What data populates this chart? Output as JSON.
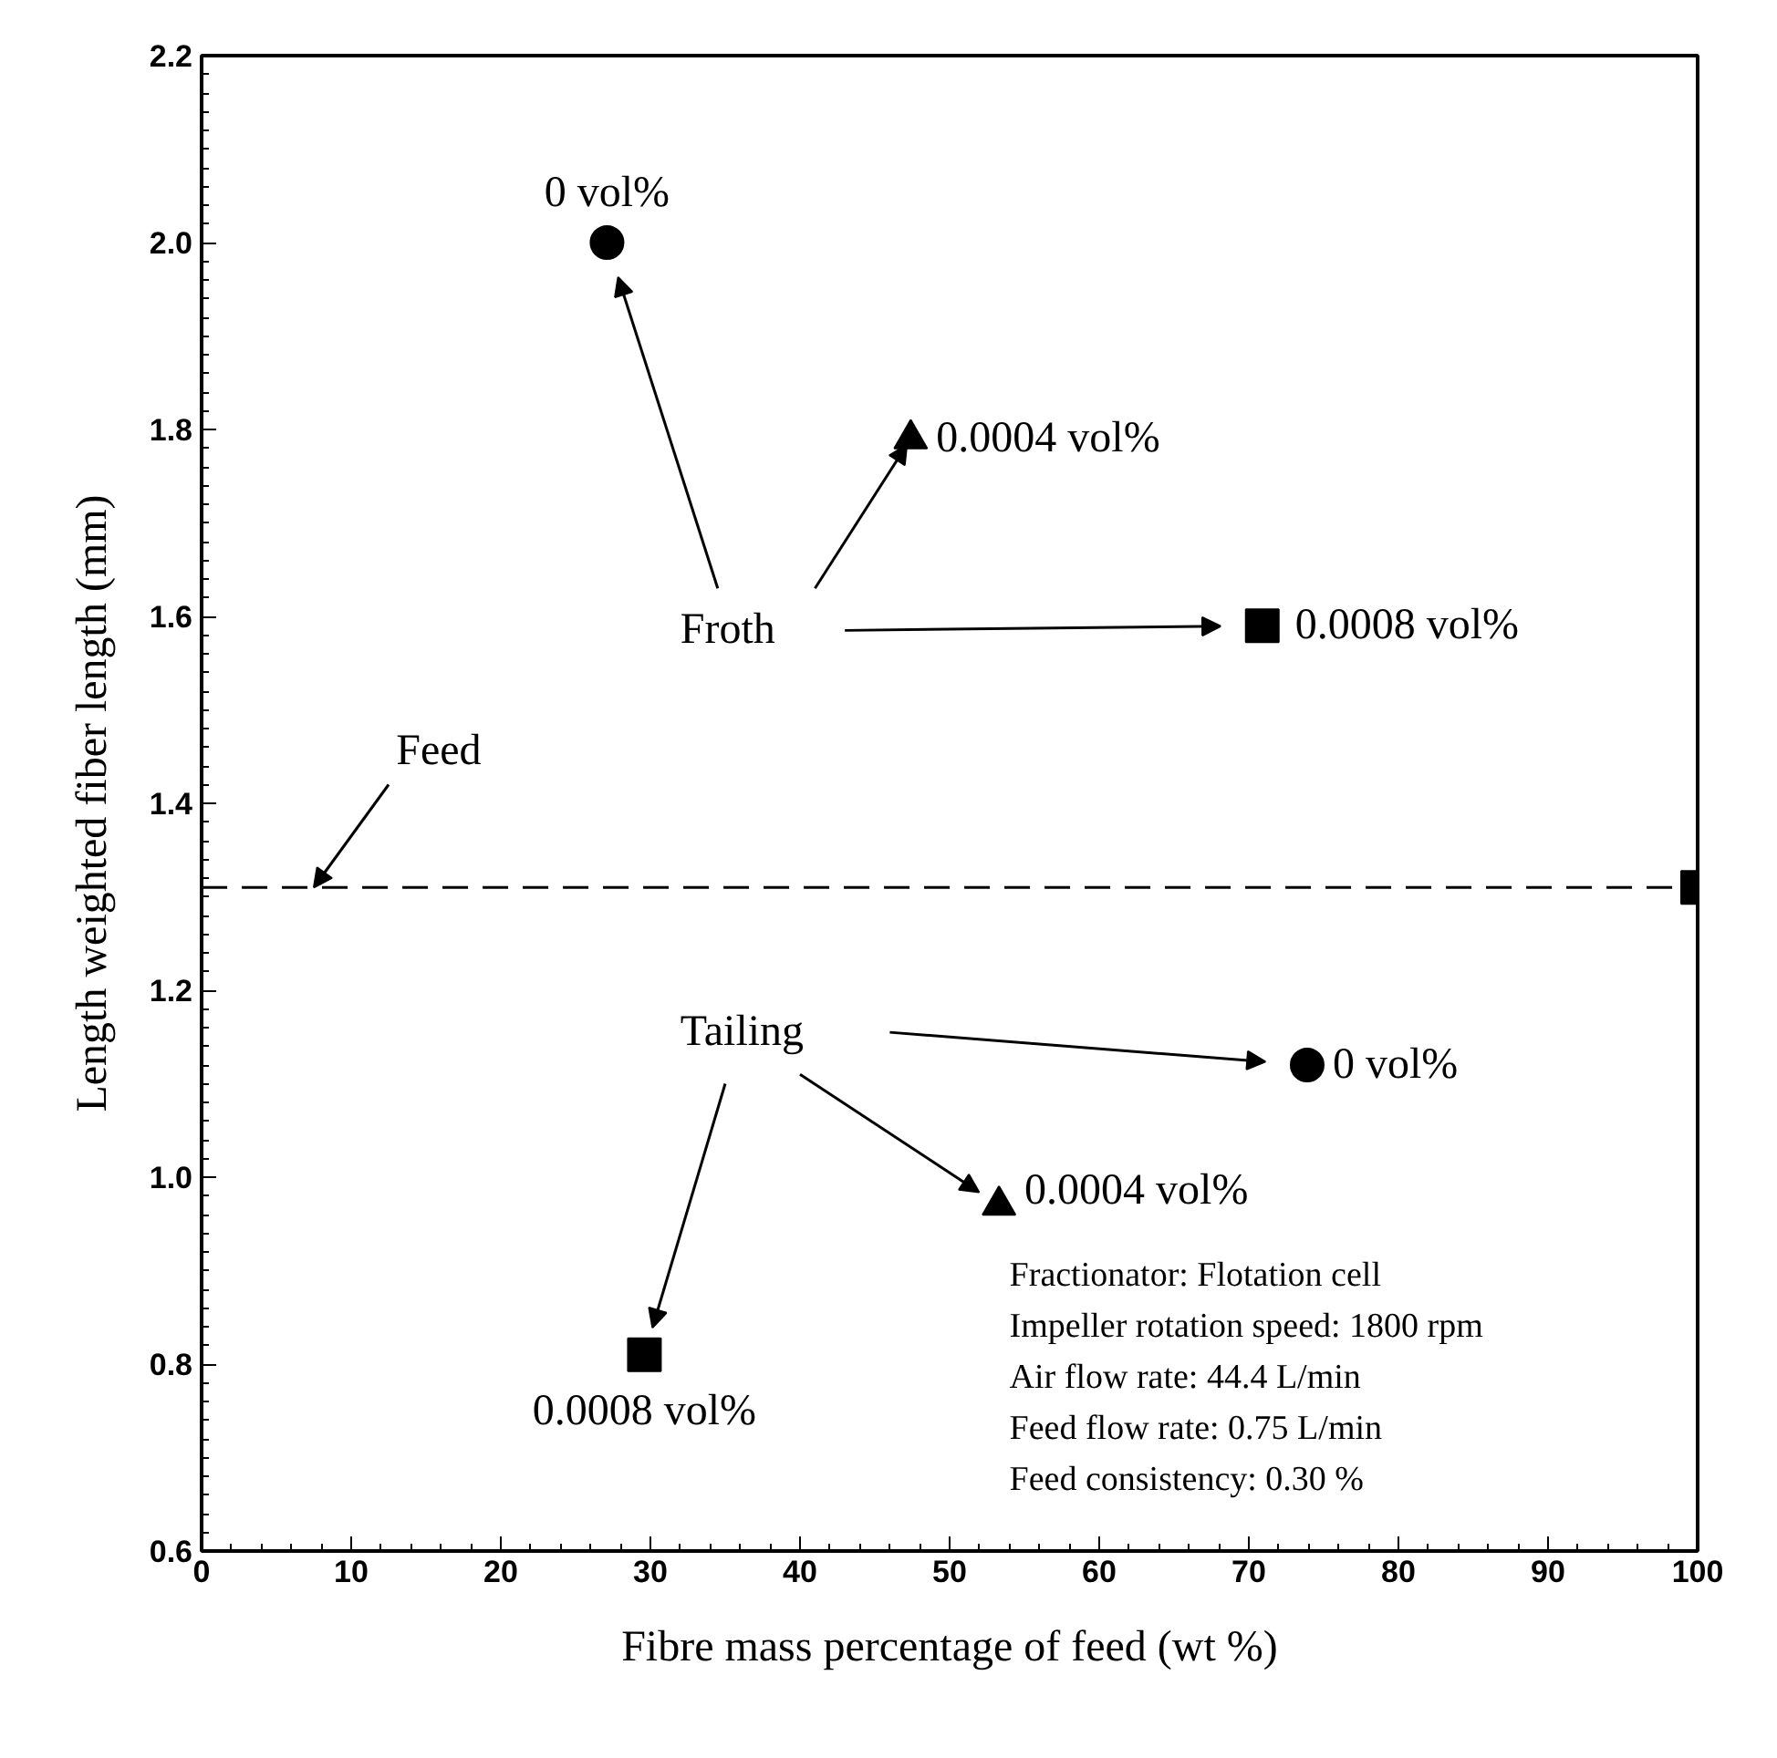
{
  "chart_data": {
    "type": "scatter",
    "xlabel": "Fibre mass percentage of feed (wt %)",
    "ylabel": "Length weighted fiber length (mm)",
    "xlim": [
      0,
      100
    ],
    "ylim": [
      0.6,
      2.2
    ],
    "xticks": [
      0,
      10,
      20,
      30,
      40,
      50,
      60,
      70,
      80,
      90,
      100
    ],
    "yticks": [
      0.6,
      0.8,
      {
        "value": 1.0,
        "label": "1.0"
      },
      1.2,
      1.4,
      1.6,
      1.8,
      {
        "value": 2.0,
        "label": "2.0"
      },
      2.2
    ],
    "grid": false,
    "series": [
      {
        "marker": "circle",
        "color": "#000000",
        "x": [
          27.1,
          73.9
        ],
        "values": [
          2.0,
          1.12
        ]
      },
      {
        "marker": "triangle",
        "color": "#000000",
        "x": [
          47.4,
          53.3
        ],
        "values": [
          1.79,
          0.97
        ]
      },
      {
        "marker": "square",
        "color": "#000000",
        "x": [
          70.9,
          29.6
        ],
        "values": [
          1.59,
          0.81
        ]
      },
      {
        "marker": "square",
        "color": "#000000",
        "x": [
          100
        ],
        "values": [
          1.31
        ]
      }
    ],
    "ref_lines": [
      {
        "axis": "y",
        "value": 1.31,
        "label": "Feed",
        "line_style": "dashed",
        "color": "#000000"
      }
    ],
    "annotations": [
      {
        "text": "0 vol%",
        "x": 27.1,
        "y": 2.0
      },
      {
        "text": "0.0004 vol%",
        "x": 47.4,
        "y": 1.79
      },
      {
        "text": "0.0008 vol%",
        "x": 70.9,
        "y": 1.59
      },
      {
        "text": "0 vol%",
        "x": 73.9,
        "y": 1.12
      },
      {
        "text": "0.0004 vol%",
        "x": 53.3,
        "y": 0.97
      },
      {
        "text": "0.0008 vol%",
        "x": 29.6,
        "y": 0.81
      },
      {
        "text": "Froth",
        "x": 47.4,
        "y": 1.79
      },
      "Tailing",
      "Fractionator: Flotation cell",
      "Impeller rotation speed: 1800 rpm",
      "Air flow rate: 44.4 L/min",
      "Feed flow rate: 0.75 L/min",
      "Feed consistency: 0.30 %"
    ]
  }
}
